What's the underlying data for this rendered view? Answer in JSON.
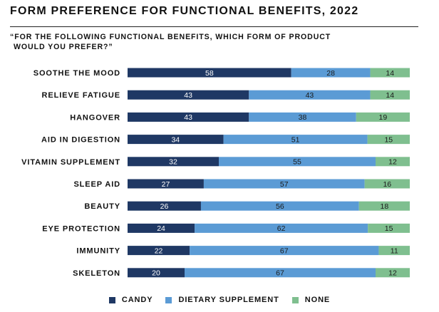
{
  "title": "FORM PREFERENCE FOR FUNCTIONAL BENEFITS, 2022",
  "subtitle_line1": "“FOR THE FOLLOWING FUNCTIONAL BENEFITS, WHICH FORM OF PRODUCT",
  "subtitle_line2": "WOULD YOU PREFER?”",
  "colors": {
    "candy": "#1f3864",
    "dietary_supplement": "#5b9bd5",
    "none": "#7fbf8f"
  },
  "chart_data": {
    "type": "bar",
    "orientation": "horizontal",
    "stacked": true,
    "percent_stacked": true,
    "categories": [
      "SOOTHE THE MOOD",
      "RELIEVE FATIGUE",
      "HANGOVER",
      "AID IN DIGESTION",
      "VITAMIN SUPPLEMENT",
      "SLEEP AID",
      "BEAUTY",
      "EYE PROTECTION",
      "IMMUNITY",
      "SKELETON"
    ],
    "series": [
      {
        "name": "CANDY",
        "values": [
          58,
          43,
          43,
          34,
          32,
          27,
          26,
          24,
          22,
          20
        ]
      },
      {
        "name": "DIETARY SUPPLEMENT",
        "values": [
          28,
          43,
          38,
          51,
          55,
          57,
          56,
          62,
          67,
          67
        ]
      },
      {
        "name": "NONE",
        "values": [
          14,
          14,
          19,
          15,
          12,
          16,
          18,
          15,
          11,
          12
        ]
      }
    ],
    "legend_position": "bottom",
    "grid": false
  }
}
